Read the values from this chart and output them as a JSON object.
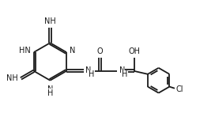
{
  "bg_color": "#ffffff",
  "bond_color": "#1a1a1a",
  "text_color": "#1a1a1a",
  "bond_width": 1.3,
  "font_size": 7.0,
  "fig_width": 2.72,
  "fig_height": 1.48,
  "dpi": 100,
  "xlim": [
    0,
    10.2
  ],
  "ylim": [
    0,
    5.5
  ]
}
